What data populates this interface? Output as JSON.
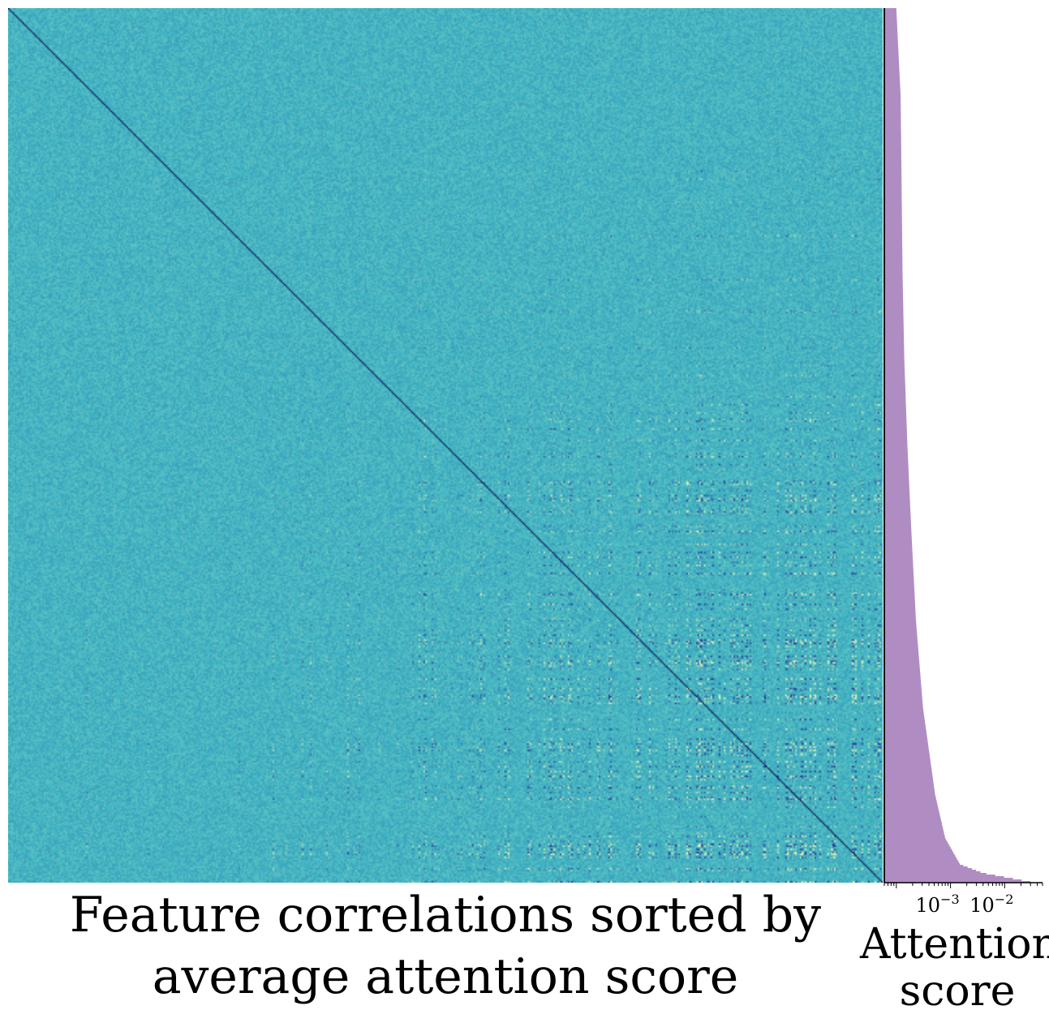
{
  "chart_data": [
    {
      "type": "heatmap",
      "title": "Feature correlations sorted by average attention score",
      "title_lines": [
        "Feature correlations sorted by",
        "average attention score"
      ],
      "value_range": [
        -1,
        1
      ],
      "diagonal_value": 1,
      "colors": {
        "background": "#41b6c4",
        "light": "#edf8b1",
        "dark": "#253494",
        "diagonal": "#081d58"
      },
      "grid": false
    },
    {
      "type": "bar",
      "orientation": "horizontal",
      "xlabel": "Attention score",
      "xlabel_lines": [
        "Attention",
        "score"
      ],
      "xscale": "log",
      "xlim": [
        6e-05,
        0.05
      ],
      "major_ticks": [
        {
          "value": 0.001,
          "base": "10",
          "exp": "−3"
        },
        {
          "value": 0.01,
          "base": "10",
          "exp": "−2"
        }
      ],
      "profile": [
        {
          "rank": 0.0,
          "score": 0.0001
        },
        {
          "rank": 0.1,
          "score": 0.00012
        },
        {
          "rank": 0.2,
          "score": 0.000125
        },
        {
          "rank": 0.3,
          "score": 0.00013
        },
        {
          "rank": 0.4,
          "score": 0.00014
        },
        {
          "rank": 0.5,
          "score": 0.00016
        },
        {
          "rank": 0.6,
          "score": 0.00019
        },
        {
          "rank": 0.7,
          "score": 0.00023
        },
        {
          "rank": 0.8,
          "score": 0.00031
        },
        {
          "rank": 0.9,
          "score": 0.00052
        },
        {
          "rank": 0.95,
          "score": 0.0008
        },
        {
          "rank": 0.98,
          "score": 0.0015
        },
        {
          "rank": 0.99,
          "score": 0.004
        },
        {
          "rank": 1.0,
          "score": 0.03
        }
      ],
      "color": "#af8dc3"
    }
  ]
}
